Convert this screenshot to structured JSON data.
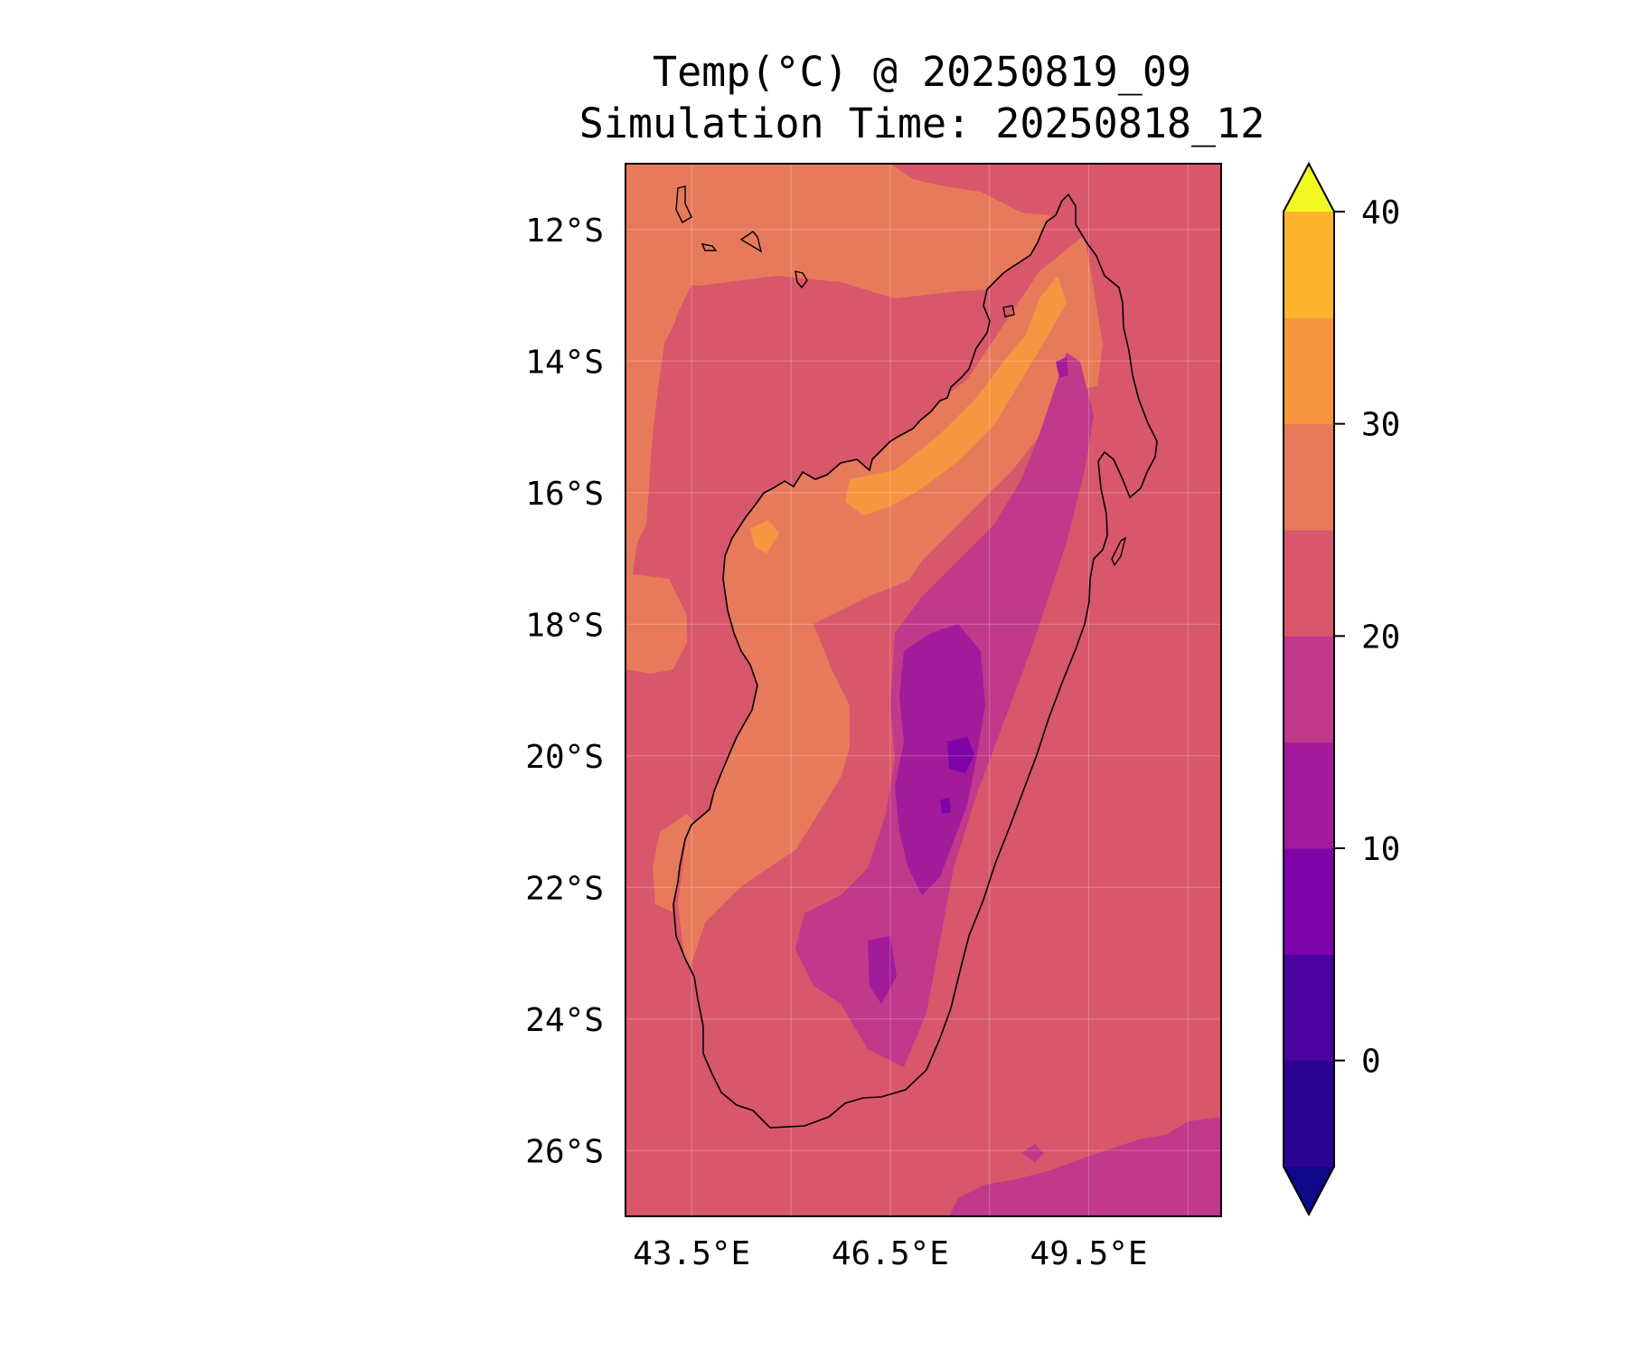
{
  "title": {
    "line1": "Temp(°C) @ 20250819_09",
    "line2": "Simulation Time: 20250818_12"
  },
  "map": {
    "region": "Madagascar",
    "lon_range": [
      42.5,
      51.5
    ],
    "lat_range": [
      -27.0,
      -11.0
    ],
    "lat_ticks": [
      {
        "value": -12,
        "label": "12°S"
      },
      {
        "value": -14,
        "label": "14°S"
      },
      {
        "value": -16,
        "label": "16°S"
      },
      {
        "value": -18,
        "label": "18°S"
      },
      {
        "value": -20,
        "label": "20°S"
      },
      {
        "value": -22,
        "label": "22°S"
      },
      {
        "value": -24,
        "label": "24°S"
      },
      {
        "value": -26,
        "label": "26°S"
      }
    ],
    "lon_ticks": [
      {
        "value": 43.5,
        "label": "43.5°E"
      },
      {
        "value": 46.5,
        "label": "46.5°E"
      },
      {
        "value": 49.5,
        "label": "49.5°E"
      }
    ],
    "grid": true
  },
  "colorbar": {
    "levels": [
      -5,
      0,
      5,
      10,
      15,
      20,
      25,
      30,
      35,
      40
    ],
    "colors": [
      "#0d0887",
      "#2a0593",
      "#4a02a0",
      "#7e03a8",
      "#a11b9b",
      "#c0398a",
      "#d8576b",
      "#e87a5c",
      "#f89540",
      "#fdb52f",
      "#f3e226",
      "#f0f921"
    ],
    "extend": "both",
    "ticks": [
      {
        "value": 0,
        "label": "0"
      },
      {
        "value": 10,
        "label": "10"
      },
      {
        "value": 20,
        "label": "20"
      },
      {
        "value": 30,
        "label": "30"
      },
      {
        "value": 40,
        "label": "40"
      }
    ]
  }
}
